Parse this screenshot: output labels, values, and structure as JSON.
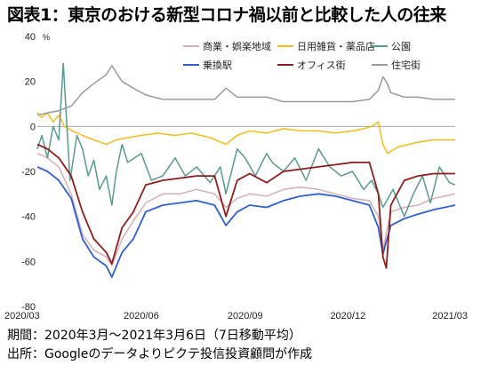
{
  "title": "図表1：東京のおける新型コロナ禍以前と比較した人の往来",
  "footnotes": [
    "期間：2020年3月～2021年3月6日（7日移動平均）",
    "出所：Googleのデータよりピクテ投信投資顧問が作成"
  ],
  "chart_data": {
    "type": "line",
    "title": "",
    "xlabel": "",
    "ylabel": "",
    "yunit": "%",
    "ylim": [
      -80,
      40
    ],
    "yticks": [
      40,
      20,
      0,
      -20,
      -40,
      -60,
      -80
    ],
    "xlim": [
      "2020-03-01",
      "2021-03-06"
    ],
    "xticks": [
      "2020/03",
      "2020/06",
      "2020/09",
      "2020/12",
      "2021/03"
    ],
    "grid": false,
    "legend": "top-center",
    "series": [
      {
        "name": "商業・娯楽地域",
        "color": "#d7aeb6",
        "points": [
          [
            "2020-03-01",
            -12
          ],
          [
            "2020-03-10",
            -14
          ],
          [
            "2020-03-20",
            -18
          ],
          [
            "2020-03-31",
            -30
          ],
          [
            "2020-04-10",
            -48
          ],
          [
            "2020-04-20",
            -55
          ],
          [
            "2020-05-01",
            -58
          ],
          [
            "2020-05-06",
            -62
          ],
          [
            "2020-05-15",
            -50
          ],
          [
            "2020-05-25",
            -42
          ],
          [
            "2020-06-05",
            -34
          ],
          [
            "2020-06-20",
            -30
          ],
          [
            "2020-07-05",
            -30
          ],
          [
            "2020-07-20",
            -28
          ],
          [
            "2020-08-05",
            -30
          ],
          [
            "2020-08-15",
            -36
          ],
          [
            "2020-08-25",
            -32
          ],
          [
            "2020-09-05",
            -30
          ],
          [
            "2020-09-20",
            -31
          ],
          [
            "2020-10-05",
            -28
          ],
          [
            "2020-10-20",
            -27
          ],
          [
            "2020-11-05",
            -28
          ],
          [
            "2020-11-20",
            -30
          ],
          [
            "2020-12-05",
            -32
          ],
          [
            "2020-12-20",
            -33
          ],
          [
            "2020-12-28",
            -40
          ],
          [
            "2021-01-01",
            -55
          ],
          [
            "2021-01-03",
            -50
          ],
          [
            "2021-01-08",
            -38
          ],
          [
            "2021-01-20",
            -36
          ],
          [
            "2021-02-01",
            -35
          ],
          [
            "2021-02-15",
            -32
          ],
          [
            "2021-03-06",
            -30
          ]
        ]
      },
      {
        "name": "日用雑貨・薬品店",
        "color": "#f2bd1d",
        "points": [
          [
            "2020-03-01",
            6
          ],
          [
            "2020-03-05",
            4
          ],
          [
            "2020-03-10",
            6
          ],
          [
            "2020-03-15",
            2
          ],
          [
            "2020-03-20",
            5
          ],
          [
            "2020-03-25",
            0
          ],
          [
            "2020-04-01",
            -2
          ],
          [
            "2020-04-10",
            -4
          ],
          [
            "2020-04-20",
            -6
          ],
          [
            "2020-05-01",
            -8
          ],
          [
            "2020-05-10",
            -6
          ],
          [
            "2020-05-20",
            -5
          ],
          [
            "2020-06-01",
            -4
          ],
          [
            "2020-06-15",
            -3
          ],
          [
            "2020-07-01",
            -4
          ],
          [
            "2020-07-15",
            -3
          ],
          [
            "2020-08-01",
            -5
          ],
          [
            "2020-08-15",
            -8
          ],
          [
            "2020-08-25",
            -4
          ],
          [
            "2020-09-05",
            -2
          ],
          [
            "2020-09-20",
            -3
          ],
          [
            "2020-10-05",
            -1
          ],
          [
            "2020-10-20",
            -2
          ],
          [
            "2020-11-05",
            -2
          ],
          [
            "2020-11-20",
            -3
          ],
          [
            "2020-12-05",
            -2
          ],
          [
            "2020-12-15",
            -1
          ],
          [
            "2020-12-22",
            0
          ],
          [
            "2020-12-28",
            2
          ],
          [
            "2021-01-01",
            -8
          ],
          [
            "2021-01-05",
            -12
          ],
          [
            "2021-01-15",
            -9
          ],
          [
            "2021-02-01",
            -7
          ],
          [
            "2021-02-15",
            -6
          ],
          [
            "2021-03-06",
            -6
          ]
        ]
      },
      {
        "name": "公園",
        "color": "#5b9a8e",
        "points": [
          [
            "2020-03-01",
            -10
          ],
          [
            "2020-03-05",
            -4
          ],
          [
            "2020-03-10",
            -14
          ],
          [
            "2020-03-15",
            0
          ],
          [
            "2020-03-20",
            -6
          ],
          [
            "2020-03-24",
            28
          ],
          [
            "2020-03-26",
            10
          ],
          [
            "2020-03-30",
            -24
          ],
          [
            "2020-04-05",
            -4
          ],
          [
            "2020-04-10",
            -10
          ],
          [
            "2020-04-15",
            -22
          ],
          [
            "2020-04-20",
            -15
          ],
          [
            "2020-04-25",
            -28
          ],
          [
            "2020-05-01",
            -22
          ],
          [
            "2020-05-06",
            -35
          ],
          [
            "2020-05-10",
            -20
          ],
          [
            "2020-05-15",
            -8
          ],
          [
            "2020-05-20",
            -16
          ],
          [
            "2020-06-01",
            -12
          ],
          [
            "2020-06-10",
            -24
          ],
          [
            "2020-06-20",
            -22
          ],
          [
            "2020-07-01",
            -14
          ],
          [
            "2020-07-10",
            -22
          ],
          [
            "2020-07-20",
            -18
          ],
          [
            "2020-08-01",
            -25
          ],
          [
            "2020-08-10",
            -18
          ],
          [
            "2020-08-15",
            -30
          ],
          [
            "2020-08-25",
            -10
          ],
          [
            "2020-09-01",
            -14
          ],
          [
            "2020-09-10",
            -22
          ],
          [
            "2020-09-20",
            -12
          ],
          [
            "2020-09-25",
            -16
          ],
          [
            "2020-10-05",
            -20
          ],
          [
            "2020-10-15",
            -14
          ],
          [
            "2020-10-25",
            -24
          ],
          [
            "2020-11-05",
            -10
          ],
          [
            "2020-11-15",
            -18
          ],
          [
            "2020-11-25",
            -22
          ],
          [
            "2020-12-05",
            -20
          ],
          [
            "2020-12-15",
            -28
          ],
          [
            "2020-12-22",
            -24
          ],
          [
            "2020-12-28",
            -30
          ],
          [
            "2021-01-01",
            -36
          ],
          [
            "2021-01-10",
            -28
          ],
          [
            "2021-01-20",
            -40
          ],
          [
            "2021-01-28",
            -30
          ],
          [
            "2021-02-05",
            -22
          ],
          [
            "2021-02-12",
            -34
          ],
          [
            "2021-02-20",
            -18
          ],
          [
            "2021-03-01",
            -25
          ],
          [
            "2021-03-06",
            -26
          ]
        ]
      },
      {
        "name": "乗換駅",
        "color": "#2f5fca",
        "points": [
          [
            "2020-03-01",
            -18
          ],
          [
            "2020-03-10",
            -20
          ],
          [
            "2020-03-20",
            -24
          ],
          [
            "2020-03-31",
            -32
          ],
          [
            "2020-04-10",
            -50
          ],
          [
            "2020-04-20",
            -58
          ],
          [
            "2020-05-01",
            -62
          ],
          [
            "2020-05-06",
            -67
          ],
          [
            "2020-05-15",
            -56
          ],
          [
            "2020-05-25",
            -50
          ],
          [
            "2020-06-05",
            -38
          ],
          [
            "2020-06-20",
            -35
          ],
          [
            "2020-07-05",
            -34
          ],
          [
            "2020-07-20",
            -33
          ],
          [
            "2020-08-05",
            -35
          ],
          [
            "2020-08-15",
            -44
          ],
          [
            "2020-08-25",
            -38
          ],
          [
            "2020-09-05",
            -35
          ],
          [
            "2020-09-20",
            -36
          ],
          [
            "2020-10-05",
            -33
          ],
          [
            "2020-10-20",
            -31
          ],
          [
            "2020-11-05",
            -30
          ],
          [
            "2020-11-20",
            -31
          ],
          [
            "2020-12-05",
            -33
          ],
          [
            "2020-12-20",
            -35
          ],
          [
            "2020-12-28",
            -45
          ],
          [
            "2021-01-01",
            -57
          ],
          [
            "2021-01-03",
            -53
          ],
          [
            "2021-01-08",
            -44
          ],
          [
            "2021-01-20",
            -41
          ],
          [
            "2021-02-01",
            -39
          ],
          [
            "2021-02-15",
            -37
          ],
          [
            "2021-03-06",
            -35
          ]
        ]
      },
      {
        "name": "オフィス街",
        "color": "#8e1d1d",
        "points": [
          [
            "2020-03-01",
            -8
          ],
          [
            "2020-03-10",
            -10
          ],
          [
            "2020-03-20",
            -14
          ],
          [
            "2020-03-31",
            -22
          ],
          [
            "2020-04-10",
            -38
          ],
          [
            "2020-04-20",
            -50
          ],
          [
            "2020-05-01",
            -56
          ],
          [
            "2020-05-06",
            -61
          ],
          [
            "2020-05-15",
            -45
          ],
          [
            "2020-05-25",
            -38
          ],
          [
            "2020-06-05",
            -26
          ],
          [
            "2020-06-20",
            -24
          ],
          [
            "2020-07-05",
            -23
          ],
          [
            "2020-07-20",
            -22
          ],
          [
            "2020-08-05",
            -22
          ],
          [
            "2020-08-15",
            -40
          ],
          [
            "2020-08-25",
            -24
          ],
          [
            "2020-09-05",
            -21
          ],
          [
            "2020-09-20",
            -25
          ],
          [
            "2020-10-05",
            -20
          ],
          [
            "2020-10-20",
            -19
          ],
          [
            "2020-11-05",
            -18
          ],
          [
            "2020-11-20",
            -17
          ],
          [
            "2020-12-05",
            -16
          ],
          [
            "2020-12-20",
            -16
          ],
          [
            "2020-12-28",
            -30
          ],
          [
            "2021-01-01",
            -58
          ],
          [
            "2021-01-04",
            -63
          ],
          [
            "2021-01-08",
            -35
          ],
          [
            "2021-01-20",
            -24
          ],
          [
            "2021-02-01",
            -22
          ],
          [
            "2021-02-15",
            -21
          ],
          [
            "2021-03-06",
            -21
          ]
        ]
      },
      {
        "name": "住宅街",
        "color": "#9a9a9a",
        "points": [
          [
            "2020-03-01",
            5
          ],
          [
            "2020-03-10",
            6
          ],
          [
            "2020-03-20",
            7
          ],
          [
            "2020-03-31",
            9
          ],
          [
            "2020-04-10",
            15
          ],
          [
            "2020-04-20",
            19
          ],
          [
            "2020-05-01",
            23
          ],
          [
            "2020-05-06",
            27
          ],
          [
            "2020-05-15",
            20
          ],
          [
            "2020-05-25",
            17
          ],
          [
            "2020-06-05",
            14
          ],
          [
            "2020-06-20",
            12
          ],
          [
            "2020-07-05",
            12
          ],
          [
            "2020-07-20",
            12
          ],
          [
            "2020-08-05",
            12
          ],
          [
            "2020-08-15",
            17
          ],
          [
            "2020-08-25",
            13
          ],
          [
            "2020-09-05",
            13
          ],
          [
            "2020-09-20",
            13
          ],
          [
            "2020-10-05",
            11
          ],
          [
            "2020-10-20",
            11
          ],
          [
            "2020-11-05",
            11
          ],
          [
            "2020-11-20",
            11
          ],
          [
            "2020-12-05",
            11
          ],
          [
            "2020-12-20",
            12
          ],
          [
            "2020-12-28",
            16
          ],
          [
            "2021-01-01",
            22
          ],
          [
            "2021-01-04",
            20
          ],
          [
            "2021-01-08",
            15
          ],
          [
            "2021-01-20",
            13
          ],
          [
            "2021-02-01",
            13
          ],
          [
            "2021-02-15",
            12
          ],
          [
            "2021-03-06",
            12
          ]
        ]
      }
    ]
  }
}
